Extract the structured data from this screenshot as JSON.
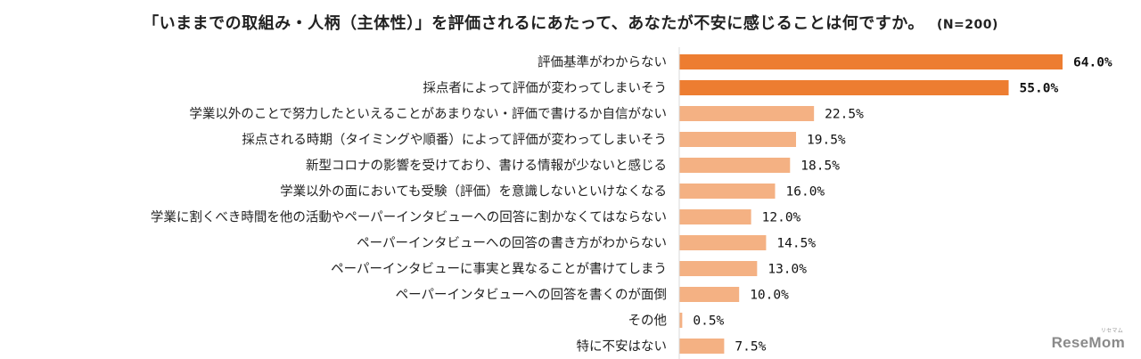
{
  "title": {
    "main": "「いままでの取組み・人柄（主体性）」を評価されるにあたって、あなたが不安に感じることは何ですか。",
    "n": "(N=200)"
  },
  "chart_data": {
    "type": "bar",
    "orientation": "horizontal",
    "title": "「いままでの取組み・人柄（主体性）」を評価されるにあたって、あなたが不安に感じることは何ですか。",
    "subtitle": "(N=200)",
    "unit": "%",
    "xlim": [
      0,
      70
    ],
    "grid": false,
    "categories": [
      "評価基準がわからない",
      "採点者によって評価が変わってしまいそう",
      "学業以外のことで努力したといえることがあまりない・評価で書けるか自信がない",
      "採点される時期（タイミングや順番）によって評価が変わってしまいそう",
      "新型コロナの影響を受けており、書ける情報が少ないと感じる",
      "学業以外の面においても受験（評価）を意識しないといけなくなる",
      "学業に割くべき時間を他の活動やペーパーインタビューへの回答に割かなくてはならない",
      "ペーパーインタビューへの回答の書き方がわからない",
      "ペーパーインタビューに事実と異なることが書けてしまう",
      "ペーパーインタビューへの回答を書くのが面倒",
      "その他",
      "特に不安はない"
    ],
    "values": [
      64.0,
      55.0,
      22.5,
      19.5,
      18.5,
      16.0,
      12.0,
      14.5,
      13.0,
      10.0,
      0.5,
      7.5
    ],
    "value_labels": [
      "64.0%",
      "55.0%",
      "22.5%",
      "19.5%",
      "18.5%",
      "16.0%",
      "12.0%",
      "14.5%",
      "13.0%",
      "10.0%",
      "0.5%",
      "7.5%"
    ],
    "highlight_count": 2,
    "colors": {
      "highlight": "#ED7D31",
      "normal": "#F4B183"
    }
  },
  "logo": {
    "text": "ReseMom",
    "small": "リセマム"
  }
}
